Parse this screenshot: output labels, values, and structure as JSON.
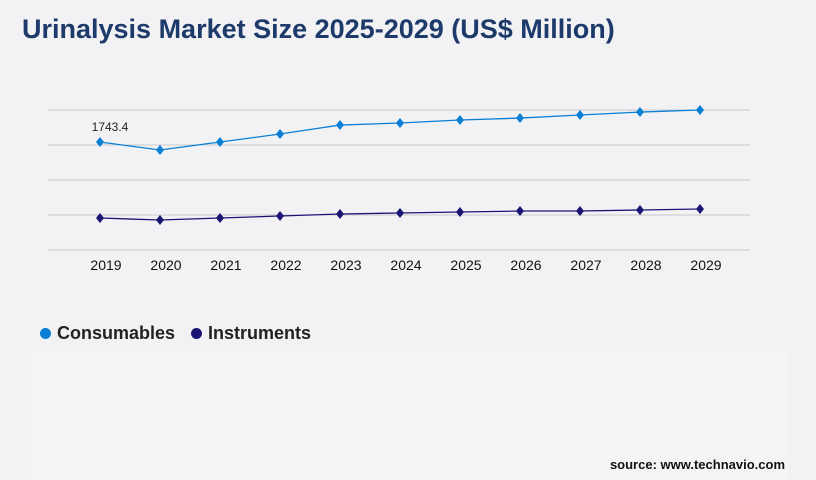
{
  "title": "Urinalysis Market Size 2025-2029 (US$ Million)",
  "source": "source: www.technavio.com",
  "chart_data": {
    "type": "line",
    "title": "Urinalysis Market Size 2025-2029 (US$ Million)",
    "categories": [
      "2019",
      "2020",
      "2021",
      "2022",
      "2023",
      "2024",
      "2025",
      "2026",
      "2027",
      "2028",
      "2029"
    ],
    "ylim": [
      0,
      2260
    ],
    "grid": true,
    "legend": "bottom-left",
    "series": [
      {
        "name": "Consumables",
        "color": "#0a7fd6",
        "values": [
          1743.4,
          1614,
          1743,
          1872,
          2017,
          2050,
          2098,
          2130,
          2179,
          2227,
          2260
        ]
      },
      {
        "name": "Instruments",
        "color": "#1a1575",
        "values": [
          516,
          484,
          516,
          549,
          581,
          597,
          613,
          629,
          629,
          646,
          662
        ]
      }
    ],
    "annotations": [
      {
        "series": "Consumables",
        "category": "2019",
        "label": "1743.4"
      }
    ]
  }
}
